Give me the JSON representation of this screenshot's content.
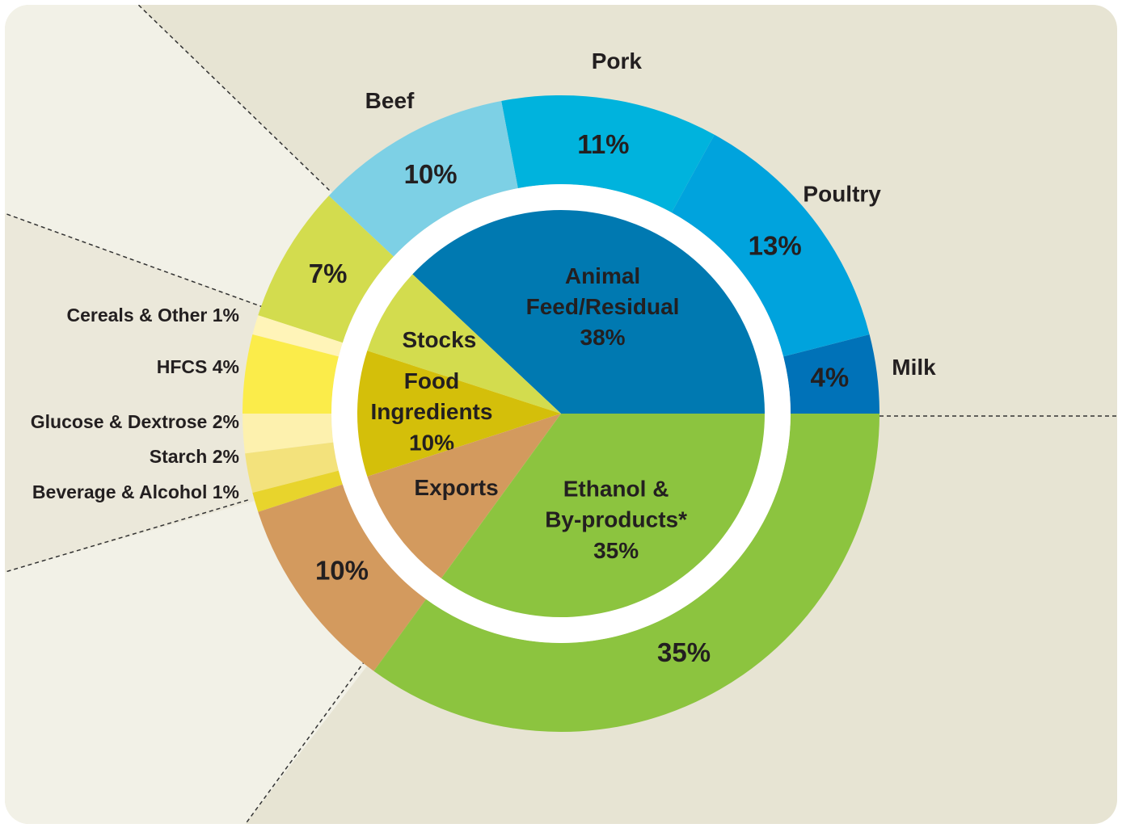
{
  "chart_data": {
    "type": "donut",
    "inner": {
      "categories": [
        "Animal Feed/Residual",
        "Stocks",
        "Food Ingredients",
        "Exports",
        "Ethanol & By-products*"
      ],
      "values": [
        38,
        7,
        10,
        10,
        35
      ],
      "value_labels": [
        "38%",
        null,
        "10%",
        null,
        "35%"
      ],
      "colors": [
        "#0079b1",
        "#d3dc4e",
        "#d4bf0a",
        "#d39a5e",
        "#8cc43f"
      ]
    },
    "outer": {
      "categories": [
        "Milk",
        "Poultry",
        "Pork",
        "Beef",
        null,
        "Cereals & Other",
        "HFCS",
        "Glucose & Dextrose",
        "Starch",
        "Beverage & Alcohol",
        null,
        null
      ],
      "values": [
        4,
        13,
        11,
        10,
        7,
        1,
        4,
        2,
        2,
        1,
        10,
        35
      ],
      "value_labels": [
        "4%",
        "13%",
        "11%",
        "10%",
        "7%",
        "1%",
        "4%",
        "2%",
        "2%",
        "1%",
        "10%",
        "35%"
      ],
      "colors": [
        "#0072b8",
        "#00a3dd",
        "#00b3dd",
        "#7dd0e5",
        "#d3dc4e",
        "#fff4b8",
        "#fbec4a",
        "#fdf1ae",
        "#f3e27c",
        "#e8d42c",
        "#d39a5e",
        "#8cc43f"
      ]
    }
  }
}
